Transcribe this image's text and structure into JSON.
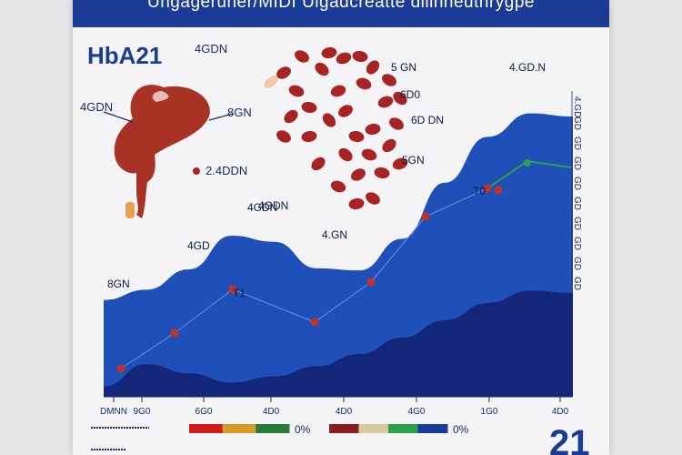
{
  "header": {
    "title": "Ungageruner/MIDI Ulgadcreatte diiinneuthrygpe"
  },
  "panel_title": "HbA21",
  "big_number": "21",
  "organ_labels": [
    {
      "text": "4GDN"
    },
    {
      "text": "4GDN"
    },
    {
      "text": "8GN"
    },
    {
      "text": "2.4DDN"
    }
  ],
  "cell_labels": [
    {
      "text": "5 GN"
    },
    {
      "text": "6D0"
    },
    {
      "text": "6D DN"
    },
    {
      "text": "5GN"
    }
  ],
  "right_axis_labels": [
    "4.GD",
    "GD",
    "GD",
    "GD",
    "GD",
    "GD",
    "GD",
    "GD",
    "GD",
    "GD"
  ],
  "legend": [
    {
      "label": "0%",
      "colors": [
        "#d21c1c",
        "#d49a2a",
        "#2a7a3a"
      ]
    },
    {
      "label": "0%",
      "colors": [
        "#8a1e1e",
        "#d9c8a0",
        "#2ca04a",
        "#1a3c96"
      ]
    }
  ],
  "colors": {
    "header": "#1a3c96",
    "area_light": "#1f4fb8",
    "area_dark": "#13267a",
    "marker": "#c0322a",
    "line": "#6a8fd8",
    "label_text": "#1a2a66",
    "organ": "#a83224",
    "cell": "#a82424"
  },
  "chart_data": {
    "type": "area",
    "title": "",
    "xlabel": "",
    "ylabel": "",
    "x_tick_labels": [
      "DMNN",
      "9G0",
      "6G0",
      "4D0",
      "4D0",
      "4G0",
      "1G0",
      "4D0"
    ],
    "series": [
      {
        "values": [
          3.0,
          14.0,
          12.8,
          9.5,
          17.5,
          18.5,
          8.0,
          10.5,
          7.0,
          12.0,
          14.5,
          19.0
        ]
      },
      {
        "values": [
          2.0,
          2.7,
          2.5,
          2.5,
          3.4,
          4.2,
          5.6,
          7.7,
          9.6,
          10.8,
          11.0,
          11.0
        ]
      }
    ],
    "markers": [
      {
        "x": 1,
        "y": 2.5
      },
      {
        "x": 3,
        "y": 6.5
      },
      {
        "x": 5,
        "y": 8.5
      },
      {
        "x": 7,
        "y": 6.0
      },
      {
        "x": 9,
        "y": 10.0
      },
      {
        "x": 11,
        "y": 15.0
      },
      {
        "x": 13,
        "y": 20.0
      },
      {
        "x": 15,
        "y": 24.0
      }
    ],
    "value_labels": [
      {
        "text": "4GDN",
        "x": 2.7,
        "y": 10.5
      },
      {
        "text": "8GN",
        "x": 0.2,
        "y": 9.0
      },
      {
        "text": "4GD",
        "x": 5.5,
        "y": 14.0
      },
      {
        "text": "4GDN",
        "x": 9.8,
        "y": 19.0
      },
      {
        "text": "4.GN",
        "x": 14.3,
        "y": 17.2
      },
      {
        "text": "T0",
        "x": 24.6,
        "y": 18.8
      },
      {
        "text": "T1",
        "x": 7.0,
        "y": 8.0
      },
      {
        "text": "4.GD.N",
        "x": 27.6,
        "y": 26.0
      }
    ]
  }
}
